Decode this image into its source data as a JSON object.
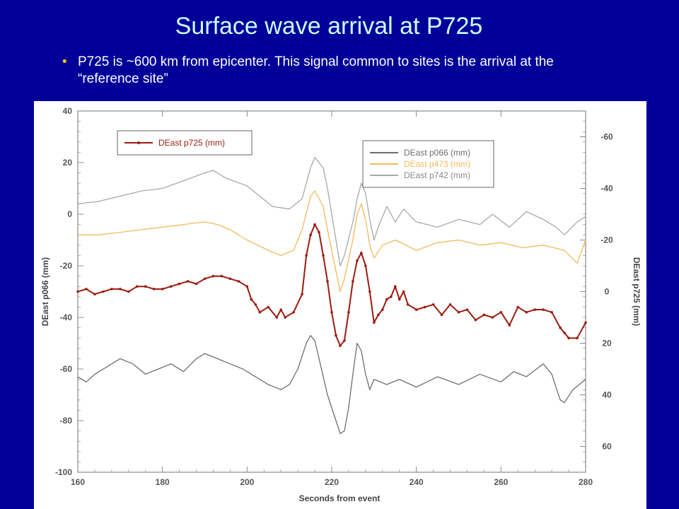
{
  "slide": {
    "title": "Surface wave arrival at P725",
    "bullet": "P725 is ~600 km from epicenter.  This signal common to sites is the arrival at the “reference site”"
  },
  "colors": {
    "background": "#000099",
    "title": "#ccffff",
    "bullet_dot": "#ffcc00",
    "p725": "#9b1b10",
    "p066": "#6e6e6e",
    "p473": "#f6b85a",
    "p742": "#a8a8a8"
  },
  "chart_data": {
    "type": "line",
    "title": "",
    "xlabel": "Seconds from event",
    "ylabel_left": "DEast p066 (mm)",
    "ylabel_right": "DEast p725 (mm)",
    "xlim": [
      160,
      280
    ],
    "ylim_left": [
      -100,
      40
    ],
    "ylim_right": [
      70,
      -70
    ],
    "x_ticks": [
      "160",
      "180",
      "200",
      "220",
      "240",
      "260",
      "280"
    ],
    "y_ticks_left": [
      "40",
      "20",
      "0",
      "-20",
      "-40",
      "-60",
      "-80",
      "-100"
    ],
    "y_ticks_right": [
      "-60",
      "-40",
      "-20",
      "0",
      "20",
      "40",
      "60"
    ],
    "legend_boxes": [
      {
        "placement": "top-left",
        "entries": [
          "DEast p725 (mm)"
        ]
      },
      {
        "placement": "top-right",
        "entries": [
          "DEast p066 (mm)",
          "DEast p473 (mm)",
          "DEast p742 (mm)"
        ]
      }
    ],
    "series": [
      {
        "name": "DEast p742 (mm)",
        "axis": "left",
        "color": "#a8a8a8",
        "markers": false,
        "points": [
          [
            160,
            4
          ],
          [
            165,
            5
          ],
          [
            170,
            7
          ],
          [
            175,
            9
          ],
          [
            180,
            10
          ],
          [
            185,
            13
          ],
          [
            190,
            16
          ],
          [
            192,
            17
          ],
          [
            195,
            14
          ],
          [
            200,
            11
          ],
          [
            203,
            7
          ],
          [
            206,
            3
          ],
          [
            210,
            2
          ],
          [
            213,
            6
          ],
          [
            215,
            18
          ],
          [
            216,
            22
          ],
          [
            218,
            18
          ],
          [
            219,
            10
          ],
          [
            221,
            -10
          ],
          [
            222,
            -20
          ],
          [
            223,
            -16
          ],
          [
            225,
            -3
          ],
          [
            226,
            6
          ],
          [
            227,
            12
          ],
          [
            228,
            8
          ],
          [
            229,
            -2
          ],
          [
            230,
            -10
          ],
          [
            231,
            -5
          ],
          [
            233,
            3
          ],
          [
            235,
            -3
          ],
          [
            237,
            2
          ],
          [
            240,
            -3
          ],
          [
            245,
            -5
          ],
          [
            250,
            -2
          ],
          [
            255,
            -4
          ],
          [
            258,
            0
          ],
          [
            262,
            -5
          ],
          [
            266,
            1
          ],
          [
            270,
            -2
          ],
          [
            273,
            -5
          ],
          [
            275,
            -8
          ],
          [
            278,
            -3
          ],
          [
            280,
            -1
          ]
        ]
      },
      {
        "name": "DEast p473 (mm)",
        "axis": "left",
        "color": "#f6b85a",
        "markers": false,
        "points": [
          [
            160,
            -8
          ],
          [
            165,
            -8
          ],
          [
            170,
            -7
          ],
          [
            175,
            -6
          ],
          [
            180,
            -5
          ],
          [
            185,
            -4
          ],
          [
            190,
            -3
          ],
          [
            193,
            -4
          ],
          [
            196,
            -6
          ],
          [
            200,
            -10
          ],
          [
            205,
            -14
          ],
          [
            208,
            -16
          ],
          [
            211,
            -14
          ],
          [
            213,
            -6
          ],
          [
            215,
            7
          ],
          [
            216,
            9
          ],
          [
            218,
            3
          ],
          [
            219,
            -6
          ],
          [
            221,
            -22
          ],
          [
            222,
            -30
          ],
          [
            223,
            -25
          ],
          [
            225,
            -10
          ],
          [
            226,
            0
          ],
          [
            227,
            4
          ],
          [
            228,
            -2
          ],
          [
            229,
            -12
          ],
          [
            230,
            -17
          ],
          [
            232,
            -12
          ],
          [
            235,
            -10
          ],
          [
            240,
            -14
          ],
          [
            245,
            -11
          ],
          [
            250,
            -10
          ],
          [
            255,
            -12
          ],
          [
            260,
            -11
          ],
          [
            265,
            -13
          ],
          [
            270,
            -12
          ],
          [
            275,
            -14
          ],
          [
            278,
            -19
          ],
          [
            280,
            -10
          ]
        ]
      },
      {
        "name": "DEast p725 (mm)",
        "axis": "right",
        "color": "#9b1b10",
        "markers": true,
        "points": [
          [
            160,
            0
          ],
          [
            162,
            -1
          ],
          [
            164,
            1
          ],
          [
            166,
            0
          ],
          [
            168,
            -1
          ],
          [
            170,
            -1
          ],
          [
            172,
            0
          ],
          [
            174,
            -2
          ],
          [
            176,
            -2
          ],
          [
            178,
            -1
          ],
          [
            180,
            -1
          ],
          [
            182,
            -2
          ],
          [
            184,
            -3
          ],
          [
            186,
            -4
          ],
          [
            188,
            -3
          ],
          [
            190,
            -5
          ],
          [
            192,
            -6
          ],
          [
            194,
            -6
          ],
          [
            196,
            -5
          ],
          [
            198,
            -4
          ],
          [
            200,
            -2
          ],
          [
            201,
            3
          ],
          [
            202,
            5
          ],
          [
            203,
            8
          ],
          [
            205,
            6
          ],
          [
            207,
            10
          ],
          [
            208,
            7
          ],
          [
            209,
            10
          ],
          [
            211,
            8
          ],
          [
            213,
            1
          ],
          [
            214,
            -14
          ],
          [
            215,
            -22
          ],
          [
            216,
            -26
          ],
          [
            217,
            -23
          ],
          [
            218,
            -14
          ],
          [
            219,
            -4
          ],
          [
            220,
            8
          ],
          [
            221,
            17
          ],
          [
            222,
            21
          ],
          [
            223,
            19
          ],
          [
            224,
            8
          ],
          [
            225,
            -4
          ],
          [
            226,
            -12
          ],
          [
            227,
            -15
          ],
          [
            228,
            -10
          ],
          [
            229,
            0
          ],
          [
            230,
            12
          ],
          [
            231,
            9
          ],
          [
            232,
            7
          ],
          [
            233,
            3
          ],
          [
            234,
            2
          ],
          [
            235,
            -2
          ],
          [
            236,
            3
          ],
          [
            237,
            0
          ],
          [
            238,
            5
          ],
          [
            240,
            7
          ],
          [
            242,
            6
          ],
          [
            244,
            5
          ],
          [
            246,
            9
          ],
          [
            248,
            5
          ],
          [
            250,
            8
          ],
          [
            252,
            7
          ],
          [
            254,
            11
          ],
          [
            256,
            9
          ],
          [
            258,
            10
          ],
          [
            260,
            8
          ],
          [
            262,
            13
          ],
          [
            264,
            6
          ],
          [
            266,
            8
          ],
          [
            268,
            7
          ],
          [
            270,
            7
          ],
          [
            272,
            8
          ],
          [
            274,
            14
          ],
          [
            275,
            16
          ],
          [
            276,
            18
          ],
          [
            278,
            18
          ],
          [
            280,
            12
          ]
        ]
      },
      {
        "name": "DEast p066 (mm)",
        "axis": "left",
        "color": "#6e6e6e",
        "markers": false,
        "points": [
          [
            160,
            -63
          ],
          [
            162,
            -65
          ],
          [
            164,
            -62
          ],
          [
            167,
            -59
          ],
          [
            170,
            -56
          ],
          [
            173,
            -58
          ],
          [
            176,
            -62
          ],
          [
            179,
            -60
          ],
          [
            182,
            -58
          ],
          [
            185,
            -61
          ],
          [
            188,
            -56
          ],
          [
            190,
            -54
          ],
          [
            193,
            -56
          ],
          [
            196,
            -58
          ],
          [
            199,
            -60
          ],
          [
            202,
            -63
          ],
          [
            205,
            -66
          ],
          [
            208,
            -68
          ],
          [
            210,
            -66
          ],
          [
            212,
            -60
          ],
          [
            214,
            -50
          ],
          [
            215,
            -47
          ],
          [
            216,
            -49
          ],
          [
            217,
            -56
          ],
          [
            219,
            -70
          ],
          [
            221,
            -80
          ],
          [
            222,
            -85
          ],
          [
            223,
            -84
          ],
          [
            224,
            -75
          ],
          [
            225,
            -62
          ],
          [
            226,
            -50
          ],
          [
            227,
            -53
          ],
          [
            228,
            -62
          ],
          [
            229,
            -68
          ],
          [
            230,
            -64
          ],
          [
            233,
            -66
          ],
          [
            236,
            -64
          ],
          [
            240,
            -67
          ],
          [
            245,
            -63
          ],
          [
            250,
            -66
          ],
          [
            255,
            -62
          ],
          [
            260,
            -65
          ],
          [
            263,
            -61
          ],
          [
            266,
            -63
          ],
          [
            270,
            -58
          ],
          [
            272,
            -62
          ],
          [
            274,
            -72
          ],
          [
            275,
            -73
          ],
          [
            277,
            -68
          ],
          [
            280,
            -64
          ]
        ]
      }
    ]
  }
}
